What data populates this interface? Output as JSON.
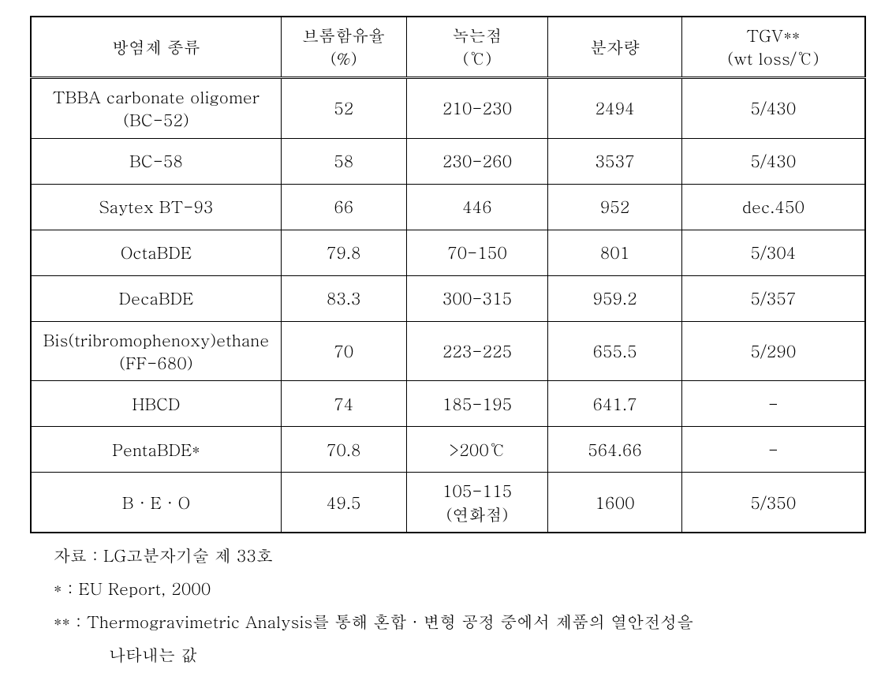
{
  "table": {
    "headers": {
      "name": "방염제 종류",
      "bromine": "브롬함유율\n(%)",
      "melting": "녹는점\n(℃)",
      "molweight": "분자량",
      "tgv": "TGV**\n(wt loss/℃)"
    },
    "rows": [
      {
        "name": "TBBA carbonate oligomer\n(BC-52)",
        "bromine": "52",
        "melting": "210-230",
        "molweight": "2494",
        "tgv": "5/430"
      },
      {
        "name": "BC-58",
        "bromine": "58",
        "melting": "230-260",
        "molweight": "3537",
        "tgv": "5/430"
      },
      {
        "name": "Saytex BT-93",
        "bromine": "66",
        "melting": "446",
        "molweight": "952",
        "tgv": "dec.450"
      },
      {
        "name": "OctaBDE",
        "bromine": "79.8",
        "melting": "70-150",
        "molweight": "801",
        "tgv": "5/304"
      },
      {
        "name": "DecaBDE",
        "bromine": "83.3",
        "melting": "300-315",
        "molweight": "959.2",
        "tgv": "5/357"
      },
      {
        "name": "Bis(tribromophenoxy)ethane\n(FF-680)",
        "bromine": "70",
        "melting": "223-225",
        "molweight": "655.5",
        "tgv": "5/290"
      },
      {
        "name": "HBCD",
        "bromine": "74",
        "melting": "185-195",
        "molweight": "641.7",
        "tgv": "-"
      },
      {
        "name": "PentaBDE*",
        "bromine": "70.8",
        "melting": ">200℃",
        "molweight": "564.66",
        "tgv": "-"
      },
      {
        "name": "B · E · O",
        "bromine": "49.5",
        "melting": "105-115\n(연화점)",
        "molweight": "1600",
        "tgv": "5/350"
      }
    ]
  },
  "footnotes": {
    "source": "자료 : LG고분자기술 제 33호",
    "note1": "* : EU Report, 2000",
    "note2_line1": "** : Thermogravimetric Analysis를 통해 혼합 · 변형 공정 중에서 제품의 열안전성을",
    "note2_line2": "나타내는 값"
  },
  "style": {
    "background_color": "#ffffff",
    "border_color": "#000000",
    "text_color": "#000000",
    "font_size_table": 21,
    "font_size_footnote": 21,
    "header_separator": "double"
  }
}
